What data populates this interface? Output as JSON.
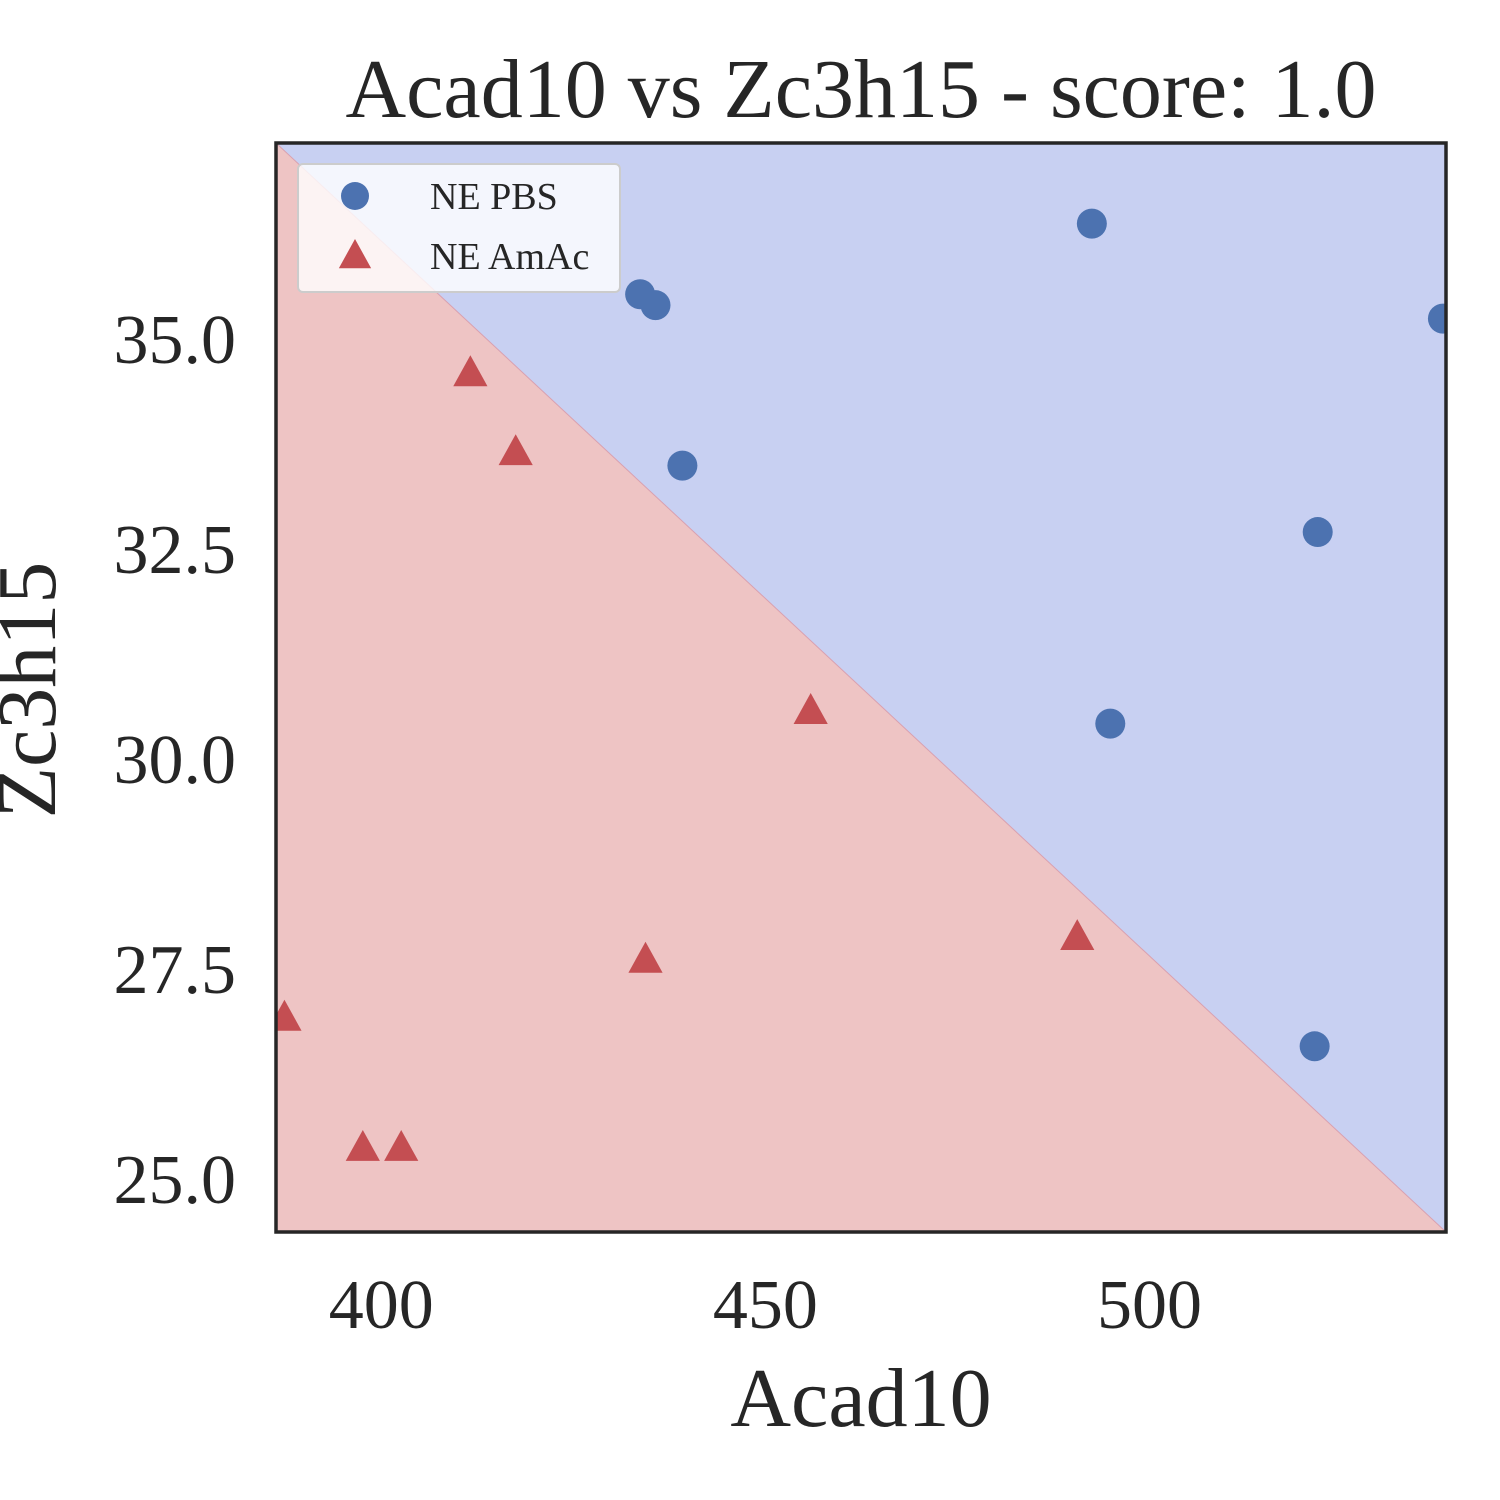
{
  "chart_data": {
    "type": "scatter",
    "title": "Acad10 vs Zc3h15 - score: 1.0",
    "xlabel": "Acad10",
    "ylabel": "Zc3h15",
    "xlim": [
      386.3,
      538.6
    ],
    "ylim": [
      24.37,
      37.33
    ],
    "xticks": [
      400,
      450,
      500
    ],
    "yticks": [
      25.0,
      27.5,
      30.0,
      32.5,
      35.0
    ],
    "xtick_labels": [
      "400",
      "450",
      "500"
    ],
    "ytick_labels": [
      "25.0",
      "27.5",
      "30.0",
      "32.5",
      "35.0"
    ],
    "grid": false,
    "legend": {
      "position": "top-left",
      "entries": [
        "NE PBS",
        "NE AmAc"
      ]
    },
    "decision_boundary": {
      "description": "linear classifier boundary",
      "points": [
        [
          386.3,
          37.33
        ],
        [
          538.6,
          24.37
        ]
      ],
      "regions": [
        {
          "class": "NE PBS",
          "side": "upper-right",
          "color": "#c8d0f2"
        },
        {
          "class": "NE AmAc",
          "side": "lower-left",
          "color": "#eec4c4"
        }
      ]
    },
    "series": [
      {
        "name": "NE PBS",
        "marker": "circle",
        "color": "#4c72b0",
        "points": [
          [
            433.7,
            35.53
          ],
          [
            435.7,
            35.4
          ],
          [
            439.2,
            33.49
          ],
          [
            492.5,
            36.37
          ],
          [
            494.9,
            30.42
          ],
          [
            521.5,
            26.58
          ],
          [
            521.9,
            32.7
          ],
          [
            538.2,
            35.24
          ]
        ]
      },
      {
        "name": "NE AmAc",
        "marker": "triangle",
        "color": "#c44e52",
        "points": [
          [
            387.4,
            26.92
          ],
          [
            397.6,
            25.37
          ],
          [
            402.6,
            25.37
          ],
          [
            411.6,
            34.59
          ],
          [
            417.5,
            33.65
          ],
          [
            434.4,
            27.61
          ],
          [
            455.9,
            30.57
          ],
          [
            490.6,
            27.88
          ]
        ]
      }
    ]
  }
}
